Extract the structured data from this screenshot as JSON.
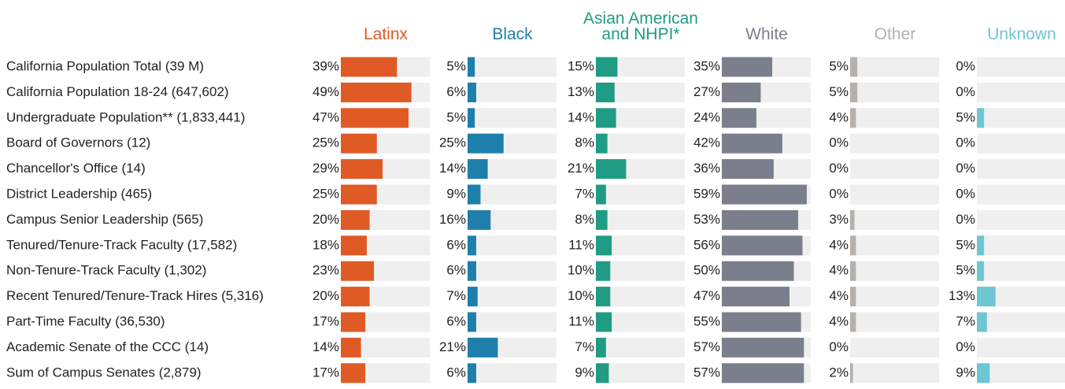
{
  "chart_data": {
    "type": "bar",
    "categories": [
      "California Population Total (39 M)",
      "California Population 18-24 (647,602)",
      "Undergraduate Population** (1,833,441)",
      "Board of Governors (12)",
      "Chancellor's Office (14)",
      "District Leadership (465)",
      "Campus Senior Leadership (565)",
      "Tenured/Tenure-Track Faculty (17,582)",
      "Non-Tenure-Track Faculty (1,302)",
      "Recent Tenured/Tenure-Track Hires (5,316)",
      "Part-Time Faculty (36,530)",
      "Academic Senate of the CCC (14)",
      "Sum of Campus Senates (2,879)"
    ],
    "series": [
      {
        "name": "Latinx",
        "color": "#e05a26",
        "values": [
          39,
          49,
          47,
          25,
          29,
          25,
          20,
          18,
          23,
          20,
          17,
          14,
          17
        ],
        "value_labels": [
          "39%",
          "49%",
          "47%",
          "25%",
          "29%",
          "25%",
          "20%",
          "18%",
          "23%",
          "20%",
          "17%",
          "14%",
          "17%"
        ]
      },
      {
        "name": "Black",
        "color": "#1f7fab",
        "values": [
          5,
          6,
          5,
          25,
          14,
          9,
          16,
          6,
          6,
          7,
          6,
          21,
          6
        ],
        "value_labels": [
          "5%",
          "6%",
          "5%",
          "25%",
          "14%",
          "9%",
          "16%",
          "6%",
          "6%",
          "7%",
          "6%",
          "21%",
          "6%"
        ]
      },
      {
        "name": "Asian American and NHPI*",
        "color": "#1f9c83",
        "values": [
          15,
          13,
          14,
          8,
          21,
          7,
          8,
          11,
          10,
          10,
          11,
          7,
          9
        ],
        "value_labels": [
          "15%",
          "13%",
          "14%",
          "8%",
          "21%",
          "7%",
          "8%",
          "11%",
          "10%",
          "10%",
          "11%",
          "7%",
          "9%"
        ]
      },
      {
        "name": "White",
        "color": "#7b7f8c",
        "values": [
          35,
          27,
          24,
          42,
          36,
          59,
          53,
          56,
          50,
          47,
          55,
          57,
          57
        ],
        "value_labels": [
          "35%",
          "27%",
          "24%",
          "42%",
          "36%",
          "59%",
          "53%",
          "56%",
          "50%",
          "47%",
          "55%",
          "57%",
          "57%"
        ]
      },
      {
        "name": "Other",
        "color": "#b5b0ab",
        "values": [
          5,
          5,
          4,
          0,
          0,
          0,
          3,
          4,
          4,
          4,
          4,
          0,
          2
        ],
        "value_labels": [
          "5%",
          "5%",
          "4%",
          "0%",
          "0%",
          "0%",
          "3%",
          "4%",
          "4%",
          "4%",
          "4%",
          "0%",
          "2%"
        ]
      },
      {
        "name": "Unknown",
        "color": "#6fc6d3",
        "values": [
          0,
          0,
          5,
          0,
          0,
          0,
          0,
          5,
          5,
          13,
          7,
          0,
          9
        ],
        "value_labels": [
          "0%",
          "0%",
          "5%",
          "0%",
          "0%",
          "0%",
          "0%",
          "5%",
          "5%",
          "13%",
          "7%",
          "0%",
          "9%"
        ]
      }
    ]
  }
}
